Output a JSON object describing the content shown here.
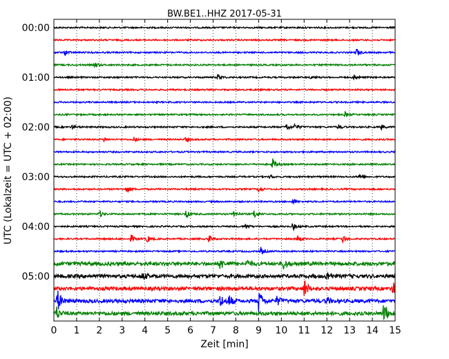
{
  "chart_data": {
    "type": "line",
    "title": "BW.BE1..HHZ 2017-05-31",
    "xlabel": "Zeit  [min]",
    "ylabel": "UTC (Lokalzeit = UTC + 02:00)",
    "xlim": [
      0,
      15
    ],
    "x_ticks": [
      "0",
      "1",
      "2",
      "3",
      "4",
      "5",
      "6",
      "7",
      "8",
      "9",
      "10",
      "11",
      "12",
      "13",
      "14",
      "15"
    ],
    "y_tick_labels": [
      "00:00",
      "01:00",
      "02:00",
      "03:00",
      "04:00",
      "05:00"
    ],
    "grid": "vertical dotted lines at each minute",
    "trace_interval_minutes": 15,
    "trace_colors": [
      "#000000",
      "#ff0000",
      "#0000ff",
      "#008000"
    ],
    "traces": [
      {
        "start": "00:00",
        "color": "#000000",
        "events": []
      },
      {
        "start": "00:15",
        "color": "#ff0000",
        "events": []
      },
      {
        "start": "00:30",
        "color": "#0000ff",
        "events": [
          {
            "t": 0.5,
            "amp": 0.25
          },
          {
            "t": 13.3,
            "amp": 0.3
          }
        ]
      },
      {
        "start": "00:45",
        "color": "#008000",
        "events": [
          {
            "t": 1.8,
            "amp": 0.25
          }
        ]
      },
      {
        "start": "01:00",
        "color": "#000000",
        "events": [
          {
            "t": 7.2,
            "amp": 0.25
          },
          {
            "t": 11.3,
            "amp": 0.15
          },
          {
            "t": 13.2,
            "amp": 0.25
          }
        ]
      },
      {
        "start": "01:15",
        "color": "#ff0000",
        "events": []
      },
      {
        "start": "01:30",
        "color": "#0000ff",
        "events": []
      },
      {
        "start": "01:45",
        "color": "#008000",
        "events": [
          {
            "t": 12.8,
            "amp": 0.2
          }
        ]
      },
      {
        "start": "02:00",
        "color": "#000000",
        "events": [
          {
            "t": 0.8,
            "amp": 0.2
          },
          {
            "t": 10.2,
            "amp": 0.35
          },
          {
            "t": 10.6,
            "amp": 0.25
          },
          {
            "t": 12.5,
            "amp": 0.2
          },
          {
            "t": 14.4,
            "amp": 0.2
          }
        ]
      },
      {
        "start": "02:15",
        "color": "#ff0000",
        "events": [
          {
            "t": 2.2,
            "amp": 0.15
          },
          {
            "t": 3.5,
            "amp": 0.2
          },
          {
            "t": 5.8,
            "amp": 0.25
          }
        ]
      },
      {
        "start": "02:30",
        "color": "#0000ff",
        "events": []
      },
      {
        "start": "02:45",
        "color": "#008000",
        "events": [
          {
            "t": 9.6,
            "amp": 0.5
          }
        ]
      },
      {
        "start": "03:00",
        "color": "#000000",
        "events": [
          {
            "t": 9.5,
            "amp": 0.15
          },
          {
            "t": 13.4,
            "amp": 0.2
          }
        ]
      },
      {
        "start": "03:15",
        "color": "#ff0000",
        "events": [
          {
            "t": 3.2,
            "amp": 0.35
          },
          {
            "t": 9.0,
            "amp": 0.25
          }
        ]
      },
      {
        "start": "03:30",
        "color": "#0000ff",
        "events": [
          {
            "t": 10.5,
            "amp": 0.2
          }
        ]
      },
      {
        "start": "03:45",
        "color": "#008000",
        "events": [
          {
            "t": 2.0,
            "amp": 0.3
          },
          {
            "t": 5.8,
            "amp": 0.35
          },
          {
            "t": 7.9,
            "amp": 0.3
          },
          {
            "t": 8.8,
            "amp": 0.4
          }
        ]
      },
      {
        "start": "04:00",
        "color": "#000000",
        "events": [
          {
            "t": 8.4,
            "amp": 0.25
          },
          {
            "t": 10.5,
            "amp": 0.3
          }
        ]
      },
      {
        "start": "04:15",
        "color": "#ff0000",
        "events": [
          {
            "t": 3.4,
            "amp": 0.3
          },
          {
            "t": 4.1,
            "amp": 0.3
          },
          {
            "t": 6.8,
            "amp": 0.35
          },
          {
            "t": 10.7,
            "amp": 0.3
          },
          {
            "t": 12.7,
            "amp": 0.3
          }
        ]
      },
      {
        "start": "04:30",
        "color": "#0000ff",
        "events": [
          {
            "t": 9.1,
            "amp": 0.3
          }
        ]
      },
      {
        "start": "04:45",
        "color": "#008000",
        "events": [
          {
            "t": 7.3,
            "amp": 0.5
          },
          {
            "t": 8.5,
            "amp": 0.3
          },
          {
            "t": 10.1,
            "amp": 0.45
          }
        ]
      },
      {
        "start": "05:00",
        "color": "#000000",
        "events": [
          {
            "t": 3.9,
            "amp": 0.3
          },
          {
            "t": 12.0,
            "amp": 0.45
          }
        ]
      },
      {
        "start": "05:15",
        "color": "#ff0000",
        "events": [
          {
            "t": 11.0,
            "amp": 0.9
          },
          {
            "t": 14.9,
            "amp": 0.6
          }
        ]
      },
      {
        "start": "05:30",
        "color": "#0000ff",
        "events": [
          {
            "t": 0.15,
            "amp": 1.0
          },
          {
            "t": 7.3,
            "amp": 0.6
          },
          {
            "t": 7.7,
            "amp": 0.5
          },
          {
            "t": 9.0,
            "amp": 1.0
          },
          {
            "t": 9.8,
            "amp": 0.4
          },
          {
            "t": 12.0,
            "amp": 0.3
          }
        ]
      },
      {
        "start": "05:45",
        "color": "#008000",
        "events": [
          {
            "t": 0.1,
            "amp": 0.6
          },
          {
            "t": 14.5,
            "amp": 1.1
          }
        ]
      }
    ]
  }
}
